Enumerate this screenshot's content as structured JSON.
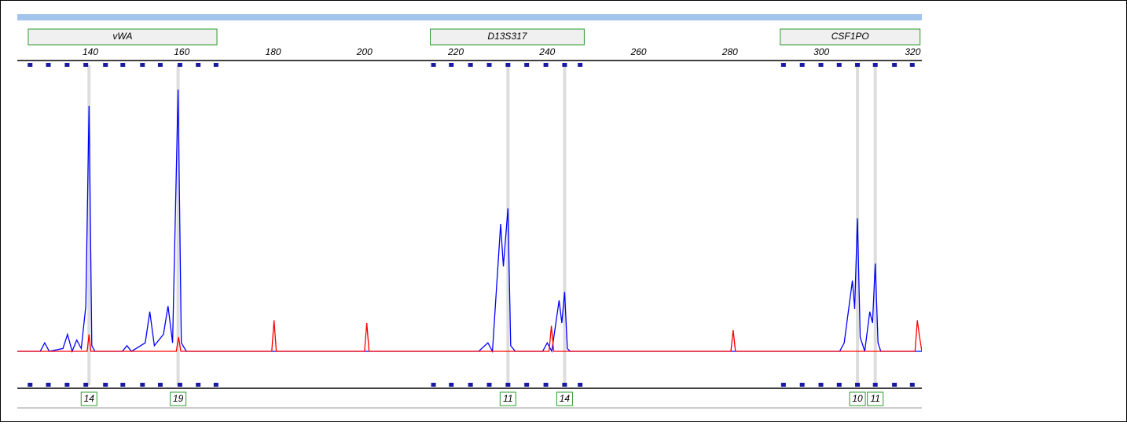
{
  "chart_data": {
    "type": "electropherogram",
    "xlim": [
      124,
      322
    ],
    "xticks": [
      140,
      160,
      180,
      200,
      220,
      240,
      260,
      280,
      300,
      320
    ],
    "ylim": [
      0,
      100
    ],
    "loci": [
      {
        "name": "vWA",
        "start": 126.4,
        "end": 167.7
      },
      {
        "name": "D13S317",
        "start": 214.4,
        "end": 248.1
      },
      {
        "name": "CSF1PO",
        "start": 291,
        "end": 321.6
      }
    ],
    "bin_markers": [
      126.8,
      130.8,
      134.9,
      139,
      143.3,
      147.1,
      151.4,
      155.3,
      159.6,
      163.6,
      167.5,
      215.1,
      219,
      223.2,
      227.3,
      231.4,
      235.5,
      239.7,
      243.8,
      247.2,
      291.7,
      295.8,
      299.9,
      303.9,
      307.9,
      311.8,
      316,
      319.9
    ],
    "alleles": [
      {
        "label": "14",
        "x": 139.7
      },
      {
        "label": "19",
        "x": 159.2
      },
      {
        "label": "11",
        "x": 231.4
      },
      {
        "label": "14",
        "x": 243.8
      },
      {
        "label": "10",
        "x": 307.9
      },
      {
        "label": "11",
        "x": 311.8
      }
    ],
    "series": [
      {
        "name": "blue",
        "color": "#0000ff",
        "x": [
          124,
          129,
          130,
          131,
          134,
          135,
          136,
          137,
          138,
          139,
          139.7,
          140.3,
          141,
          147,
          148,
          149,
          152,
          153,
          154,
          156,
          157,
          158,
          159.2,
          159.9,
          161,
          225,
          227,
          228,
          229.8,
          230.4,
          231.4,
          232,
          233,
          239,
          240,
          241,
          242.6,
          243.2,
          243.8,
          244.4,
          245,
          304,
          305,
          306.8,
          307.3,
          307.9,
          308.5,
          309.5,
          310.6,
          311.2,
          311.8,
          312.4,
          313,
          322
        ],
        "values": [
          0,
          0,
          3,
          0,
          1,
          6,
          0,
          4,
          1,
          16,
          86.7,
          2,
          0,
          0,
          2,
          0,
          3,
          14,
          2,
          6,
          16,
          3,
          92.5,
          3,
          0,
          0,
          3,
          0,
          45,
          30,
          50.5,
          2,
          0,
          0,
          3,
          0,
          18,
          10,
          21,
          1,
          0,
          0,
          3,
          25,
          15,
          47,
          5,
          0,
          14,
          10,
          31,
          3,
          0,
          0
        ]
      },
      {
        "name": "red",
        "color": "#ff0000",
        "x": [
          124,
          139.3,
          139.7,
          140.1,
          158.8,
          159.3,
          159.8,
          179.7,
          180.2,
          180.7,
          200,
          200.5,
          201,
          240.4,
          240.9,
          241.4,
          280.2,
          280.7,
          281.2,
          320.5,
          321,
          321.5,
          322
        ],
        "values": [
          0,
          0,
          6,
          0,
          0,
          5,
          0,
          0,
          11,
          0,
          0,
          10,
          0,
          0,
          9,
          0,
          0,
          7.5,
          0,
          0,
          11,
          5,
          0
        ]
      }
    ]
  }
}
